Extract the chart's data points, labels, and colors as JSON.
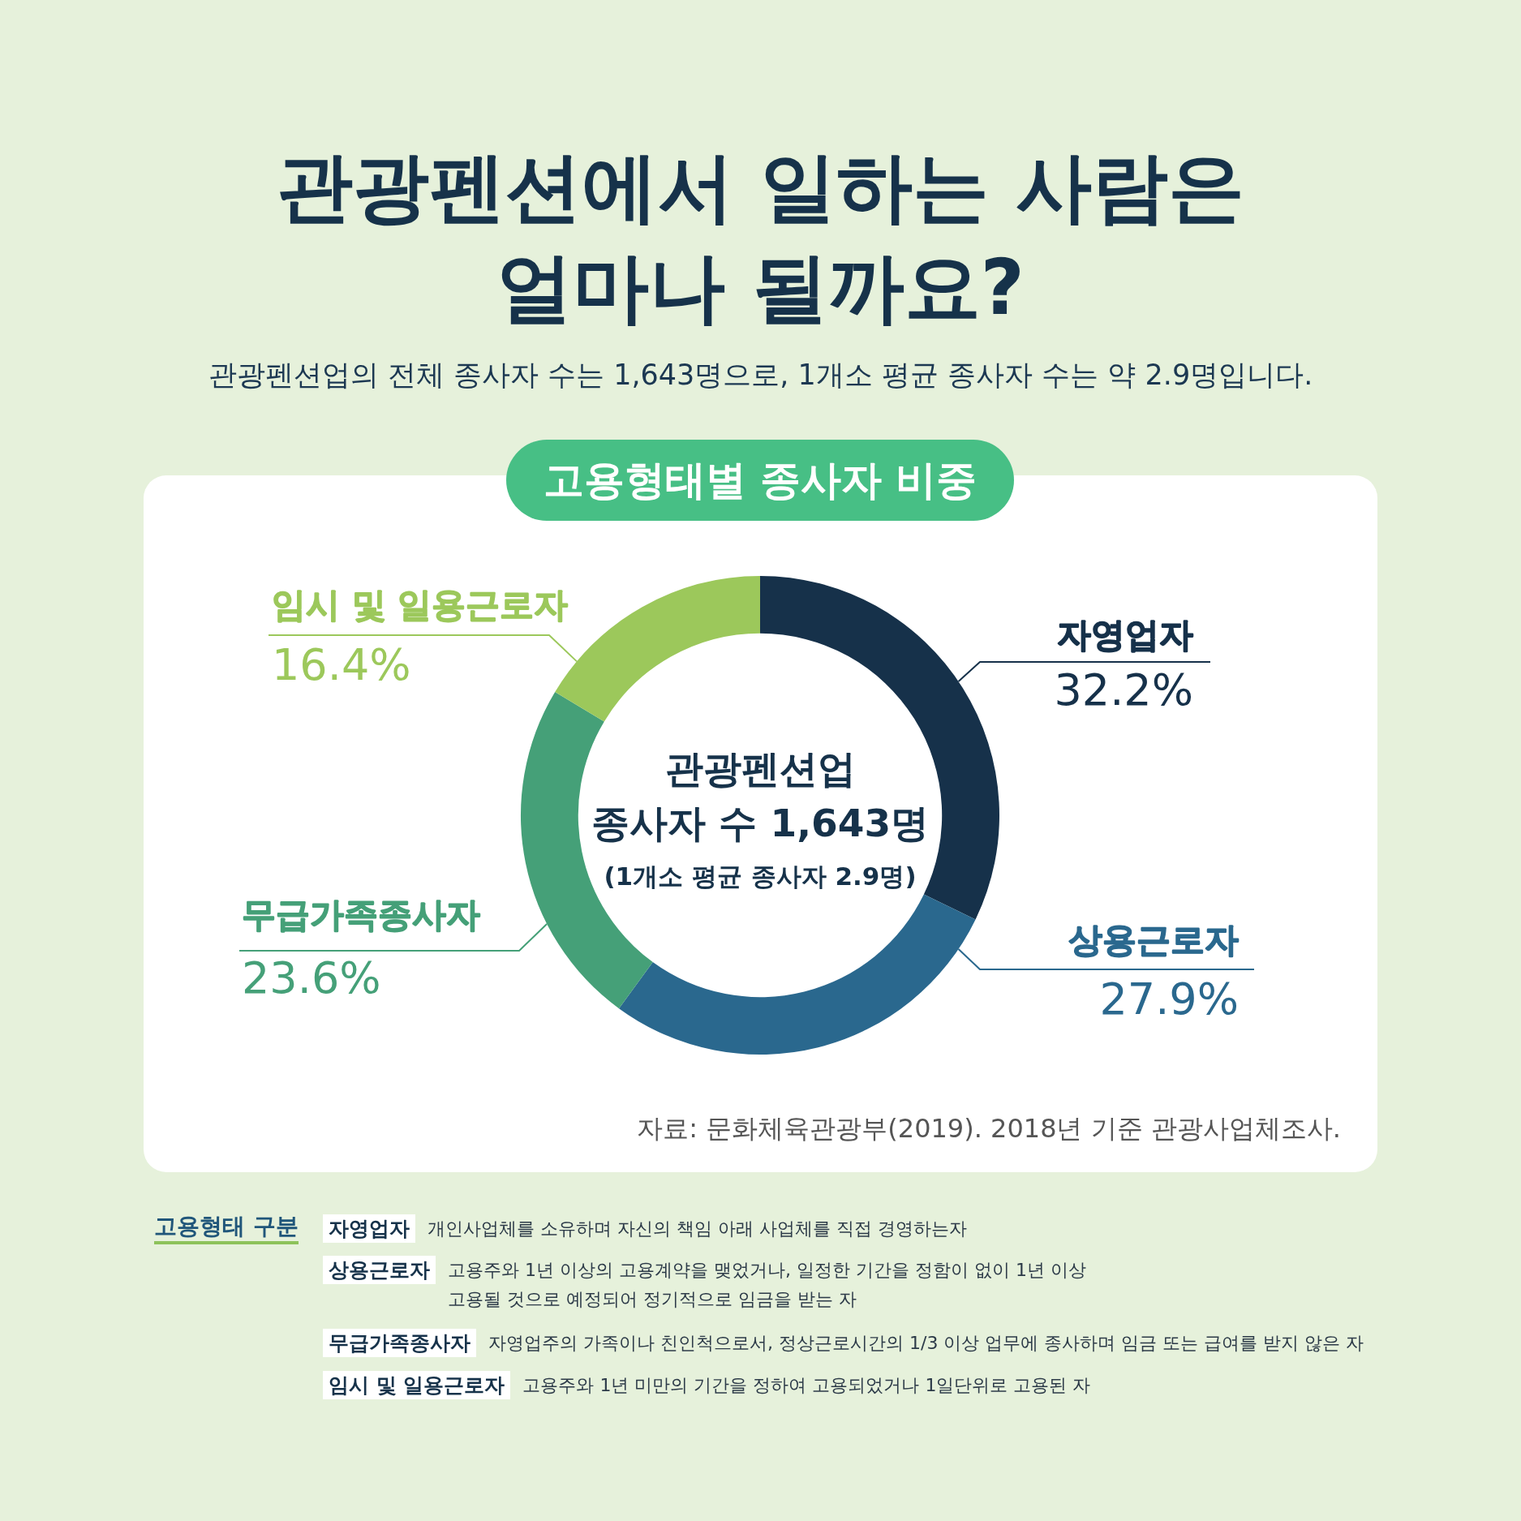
{
  "chart_data": {
    "type": "donut",
    "title": "관광펜션에서 일하는 사람은 얼마나 될까요?",
    "subtitle": "관광펜션업의 전체 종사자 수는 1,643명으로, 1개소 평균 종사자 수는 약 2.9명입니다.",
    "categories": [
      "자영업자",
      "상용근로자",
      "무급가족종사자",
      "임시 및 일용근로자"
    ],
    "values": [
      32.2,
      27.9,
      23.6,
      16.4
    ],
    "colors": [
      "#16314a",
      "#2a688e",
      "#45a078",
      "#9cc85b"
    ],
    "value_labels": [
      "32.2%",
      "27.9%",
      "23.6%",
      "16.4%"
    ],
    "annotations": [
      "고용형태별 종사자 비중",
      "관광펜션업",
      "종사자 수 1,643명",
      "(1개소 평균 종사자 2.9명)",
      "자료: 문화체육관광부(2019). 2018년 기준 관광사업체조사.",
      "고용형태 구분",
      "자영업자",
      "개인사업체를 소유하며 자신의 책임 아래 사업체를 직접 경영하는자",
      "상용근로자",
      "고용주와 1년 이상의 고용계약을 맺었거나, 일정한 기간을 정함이 없이 1년 이상\n고용될 것으로 예정되어 정기적으로 임금을 받는 자",
      "무급가족종사자",
      "자영업주의 가족이나 친인척으로서, 정상근로시간의 1/3 이상 업무에 종사하며 임금 또는 급여를 받지 않은 자",
      "임시 및 일용근로자",
      "고용주와 1년 미만의 기간을 정하여 고용되었거나 1일단위로 고용된 자"
    ]
  }
}
